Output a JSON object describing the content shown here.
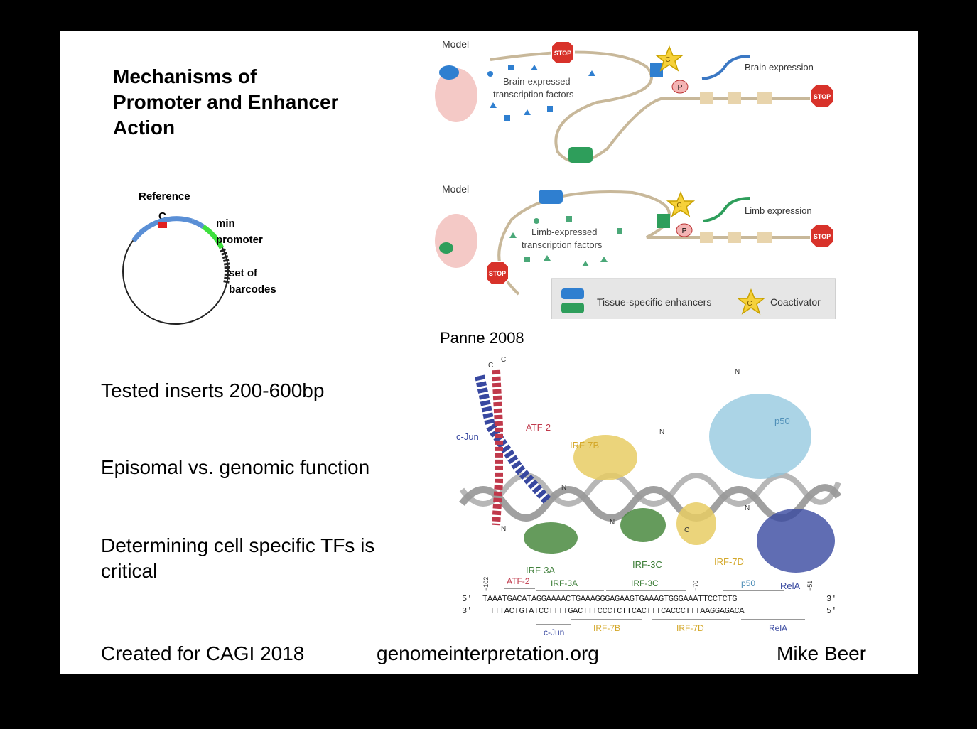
{
  "title": "Mechanisms of Promoter and Enhancer Action",
  "plasmid": {
    "reference_label": "Reference",
    "c_label": "C",
    "min_label": "min",
    "promoter_label": "promoter",
    "set_of_label": "set of",
    "barcodes_label": "barcodes"
  },
  "bullets": [
    "Tested inserts 200-600bp",
    "Episomal vs. genomic function",
    "Determining cell specific TFs is critical"
  ],
  "footer": {
    "left": "Created for CAGI 2018",
    "center": "genomeinterpretation.org",
    "right": "Mike Beer"
  },
  "citation": "Panne  2008",
  "model_top": {
    "model_label": "Model",
    "stop_label": "STOP",
    "tf_label_1": "Brain-expressed",
    "tf_label_2": "transcription factors",
    "expression_label": "Brain expression",
    "p_label": "P",
    "c_label": "C"
  },
  "model_bottom": {
    "model_label": "Model",
    "stop_label": "STOP",
    "tf_label_1": "Limb-expressed",
    "tf_label_2": "transcription factors",
    "expression_label": "Limb expression",
    "p_label": "P",
    "c_label": "C"
  },
  "legend": {
    "enhancers": "Tissue-specific enhancers",
    "coactivator": "Coactivator",
    "c_label": "C"
  },
  "structure": {
    "c_jun": "c-Jun",
    "atf2": "ATF-2",
    "irf7b": "IRF-7B",
    "p50": "p50",
    "irf3a": "IRF-3A",
    "irf3c": "IRF-3C",
    "irf7d": "IRF-7D",
    "rela": "RelA",
    "n": "N",
    "c": "C"
  },
  "sequence": {
    "pos_left": "−102",
    "pos_mid": "−70",
    "pos_right": "−51",
    "top_labels": [
      "ATF-2",
      "IRF-3A",
      "IRF-3C",
      "p50"
    ],
    "bottom_labels": [
      "c-Jun",
      "IRF-7B",
      "IRF-7D",
      "RelA"
    ],
    "strand_top_prefix": "5'",
    "strand_top_suffix": "3'",
    "strand_bottom_prefix": "3'",
    "strand_bottom_suffix": "5'",
    "strand_top": "TAAATGACATAGGAAAACTGAAAGGGAGAAGTGAAAGTGGGAAATTCCTCTG",
    "strand_bottom": "TTTACTGTATCCTTTTGACTTTCCCTCTTCACTTTCACCCTTTAAGGAGACA"
  },
  "colors": {
    "blue": "#3b78c4",
    "green": "#2e9e5b",
    "stop_red": "#d8322a",
    "star": "#f6d13a",
    "atf": "#c0394b",
    "cjun": "#3848a0",
    "irf7": "#d4a82a",
    "irf3": "#3f7f3a",
    "p50": "#6fb3d2"
  }
}
